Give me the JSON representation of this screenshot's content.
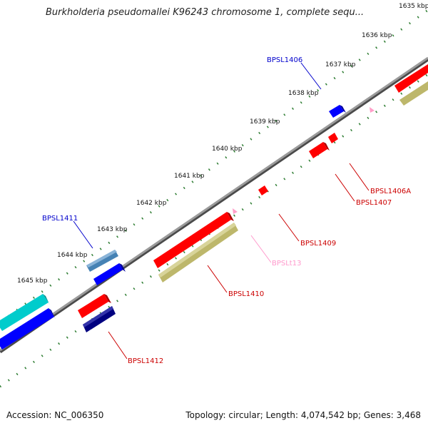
{
  "title": "Burkholderia pseudomallei K96243 chromosome 1, complete sequ...",
  "footer": {
    "accession": "Accession: NC_006350",
    "summary": "Topology: circular; Length: 4,074,542 bp; Genes: 3,468"
  },
  "ticks": [
    "1635 kbp",
    "1636 kbp",
    "1637 kbp",
    "1638 kbp",
    "1639 kbp",
    "1640 kbp",
    "1641 kbp",
    "1642 kbp",
    "1643 kbp",
    "1644 kbp",
    "1645 kbp"
  ],
  "labels": [
    "BPSL1406",
    "BPSL1411",
    "BPSL1406A",
    "BPSL1407",
    "BPSL1409",
    "BPSLt13",
    "BPSL1410",
    "BPSL1412"
  ],
  "colors": {
    "backbone": "#808080",
    "red": "#ff0000",
    "khaki": "#bdb76b",
    "blue": "#0000ff",
    "steelblue": "#4682b4",
    "cyan": "#00cccc",
    "navy": "#000080",
    "pink": "#ff9fc8",
    "green": "#2e7d32",
    "label_blue": "#0000cc",
    "label_red": "#cc0000",
    "label_pink": "#ff99cc"
  }
}
